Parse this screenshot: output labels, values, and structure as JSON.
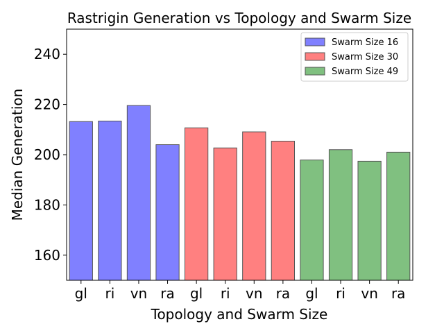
{
  "chart_data": {
    "type": "bar",
    "title": "Rastrigin Generation vs Topology and Swarm Size",
    "xlabel": "Topology and Swarm Size",
    "ylabel": "Median Generation",
    "ylim": [
      150,
      250
    ],
    "yticks": [
      160,
      180,
      200,
      220,
      240
    ],
    "categories": [
      "gl",
      "ri",
      "vn",
      "ra",
      "gl",
      "ri",
      "vn",
      "ra",
      "gl",
      "ri",
      "vn",
      "ra"
    ],
    "grid": false,
    "legend_position": "top-right",
    "series": [
      {
        "name": "Swarm Size 16",
        "color": "#8080ff",
        "positions": [
          0,
          1,
          2,
          3
        ],
        "values": [
          213.2,
          213.4,
          219.6,
          204.0
        ]
      },
      {
        "name": "Swarm Size 30",
        "color": "#ff8080",
        "positions": [
          4,
          5,
          6,
          7
        ],
        "values": [
          210.7,
          202.7,
          209.1,
          205.4
        ]
      },
      {
        "name": "Swarm Size 49",
        "color": "#80c080",
        "positions": [
          8,
          9,
          10,
          11
        ],
        "values": [
          197.9,
          202.0,
          197.4,
          201.0
        ]
      }
    ]
  }
}
